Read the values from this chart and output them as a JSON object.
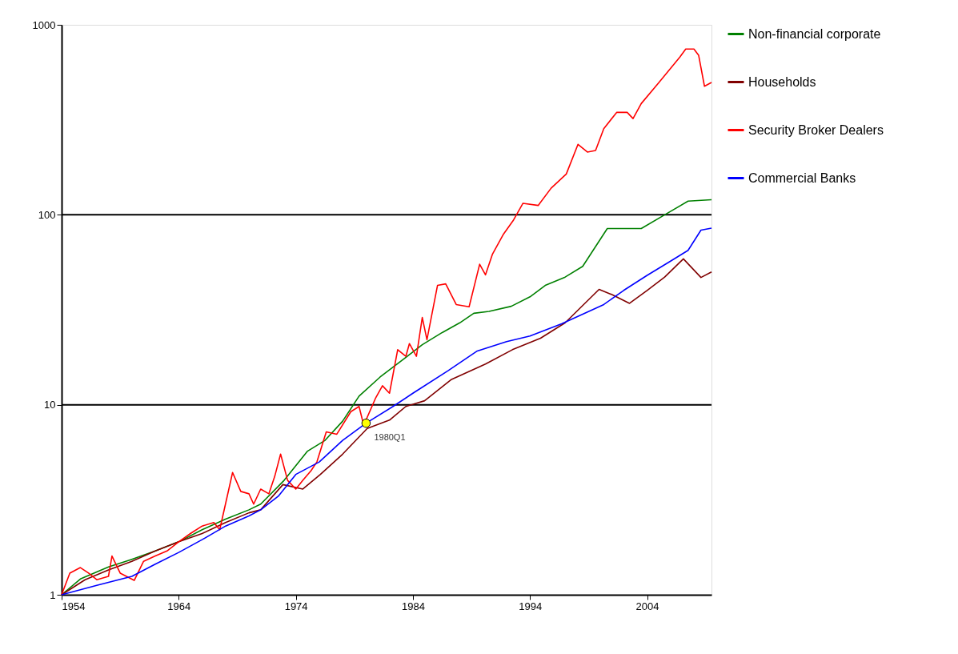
{
  "chart_data": {
    "type": "line",
    "log": "y",
    "xlim": [
      1954,
      2009.5
    ],
    "xticks": [
      1954,
      1964,
      1974,
      1984,
      1994,
      2004
    ],
    "ylim": [
      1,
      1000
    ],
    "yticks": [
      1,
      10,
      100,
      1000
    ],
    "grid": false,
    "legend": "right",
    "marker": "none",
    "line_style": "solid",
    "series": [
      {
        "name": "Non-financial corporate",
        "color": "#008000",
        "x": [
          1954,
          1955.6,
          1958,
          1959.9,
          1962,
          1964,
          1966,
          1968,
          1970,
          1971,
          1973,
          1975,
          1976.5,
          1978,
          1979.4,
          1981.2,
          1983,
          1984.8,
          1986.5,
          1988,
          1989.2,
          1990.5,
          1992.4,
          1994,
          1995.3,
          1997,
          1998.5,
          2000.6,
          2003.5,
          2005.5,
          2007.5,
          2009.5
        ],
        "values": [
          1,
          1.21,
          1.4,
          1.53,
          1.7,
          1.9,
          2.2,
          2.5,
          2.8,
          3.0,
          4.0,
          5.7,
          6.5,
          8.2,
          11.1,
          14.0,
          17.0,
          20.7,
          24,
          27,
          30.3,
          31,
          33,
          37,
          42.5,
          47,
          53.5,
          84.7,
          84.7,
          100,
          118,
          120
        ]
      },
      {
        "name": "Households",
        "color": "#800000",
        "x": [
          1954,
          1956,
          1958,
          1960,
          1962,
          1964,
          1966,
          1968,
          1970,
          1971,
          1972.9,
          1974.6,
          1976.1,
          1978,
          1980.1,
          1982,
          1983.4,
          1985,
          1987.3,
          1990.2,
          1992.5,
          1994.9,
          1997,
          1999.9,
          2001,
          2002.5,
          2004,
          2005.5,
          2007.1,
          2008.6,
          2009.5
        ],
        "values": [
          1,
          1.2,
          1.35,
          1.5,
          1.7,
          1.9,
          2.1,
          2.4,
          2.7,
          2.8,
          3.8,
          3.6,
          4.3,
          5.5,
          7.5,
          8.3,
          9.8,
          10.5,
          13.6,
          16.4,
          19.5,
          22.4,
          27,
          40.5,
          38,
          34.2,
          40,
          47,
          58.6,
          46.8,
          50
        ]
      },
      {
        "name": "Security Broker Dealers",
        "color": "#ff0000",
        "x": [
          1954,
          1954.7,
          1955.6,
          1956.3,
          1957,
          1958,
          1958.3,
          1959,
          1960.2,
          1961,
          1962,
          1963,
          1964,
          1965,
          1966,
          1967,
          1967.5,
          1968.6,
          1969.3,
          1970,
          1970.4,
          1971,
          1971.7,
          1972.2,
          1972.7,
          1973.3,
          1974,
          1974.6,
          1975.3,
          1975.8,
          1976.6,
          1977.5,
          1978.7,
          1979.4,
          1979.8,
          1980.8,
          1981.4,
          1982,
          1982.7,
          1983.4,
          1983.7,
          1984.3,
          1984.8,
          1985.2,
          1986.1,
          1986.8,
          1987.7,
          1988.8,
          1989.7,
          1990.2,
          1990.8,
          1991.7,
          1992.6,
          1993.4,
          1994.7,
          1995.8,
          1997.1,
          1998.1,
          1998.9,
          1999.6,
          2000.3,
          2001.4,
          2002.3,
          2002.8,
          2003.5,
          2005,
          2006.8,
          2007.3,
          2008,
          2008.4,
          2008.9,
          2009.5
        ],
        "values": [
          1,
          1.3,
          1.39,
          1.3,
          1.2,
          1.25,
          1.6,
          1.3,
          1.19,
          1.5,
          1.6,
          1.7,
          1.9,
          2.1,
          2.3,
          2.4,
          2.2,
          4.4,
          3.5,
          3.4,
          3.0,
          3.6,
          3.4,
          4.2,
          5.5,
          4.0,
          3.6,
          4.0,
          4.5,
          5.0,
          7.2,
          7.0,
          9.2,
          9.8,
          7.8,
          10.8,
          12.6,
          11.5,
          19.5,
          18,
          21,
          18,
          28.8,
          22,
          42.5,
          43.3,
          33.7,
          32.8,
          54.9,
          48.3,
          62.2,
          78.5,
          94,
          115,
          112,
          138,
          164,
          235,
          214,
          218,
          284,
          346,
          346,
          321,
          385,
          496,
          677,
          746,
          746,
          692,
          475,
          497
        ]
      },
      {
        "name": "Commercial Banks",
        "color": "#0000ff",
        "x": [
          1954,
          1957,
          1960,
          1962,
          1964,
          1966,
          1968,
          1970,
          1971,
          1972.5,
          1974,
          1976,
          1978,
          1980,
          1982.3,
          1984,
          1987,
          1989.5,
          1992,
          1994,
          1996.7,
          2000.3,
          2002,
          2004,
          2006,
          2007.5,
          2008.6,
          2009.5
        ],
        "values": [
          1,
          1.12,
          1.25,
          1.45,
          1.67,
          1.95,
          2.3,
          2.6,
          2.8,
          3.3,
          4.3,
          5.0,
          6.5,
          8.0,
          9.8,
          11.5,
          15.1,
          19.2,
          21.5,
          23,
          26.7,
          33.7,
          40,
          48,
          57,
          65,
          83,
          85
        ]
      }
    ],
    "ref_lines": [
      {
        "axis": "y",
        "value": 10,
        "color": "#000000",
        "line_style": "solid"
      },
      {
        "axis": "y",
        "value": 100,
        "color": "#000000",
        "line_style": "solid"
      }
    ],
    "annotations": [
      {
        "text": "1980Q1",
        "x": 1980,
        "y": 8
      }
    ]
  }
}
